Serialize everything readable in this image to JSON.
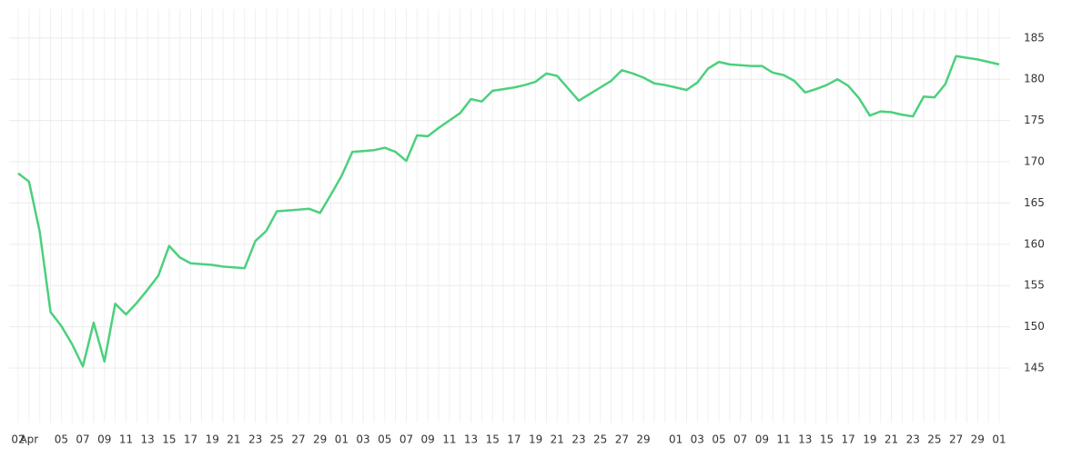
{
  "chart_data": {
    "type": "line",
    "categories": [
      "02",
      "Apr",
      null,
      null,
      "05",
      null,
      "07",
      null,
      "09",
      null,
      "11",
      null,
      "13",
      null,
      "15",
      null,
      "17",
      null,
      "19",
      null,
      "21",
      null,
      "23",
      null,
      "25",
      null,
      "27",
      null,
      "29",
      null,
      "01",
      null,
      "03",
      null,
      "05",
      null,
      "07",
      null,
      "09",
      null,
      "11",
      null,
      "13",
      null,
      "15",
      null,
      "17",
      null,
      "19",
      null,
      "21",
      null,
      "23",
      null,
      "25",
      null,
      "27",
      null,
      "29",
      null,
      null,
      "01",
      null,
      "03",
      null,
      "05",
      null,
      "07",
      null,
      "09",
      null,
      "11",
      null,
      "13",
      null,
      "15",
      null,
      "17",
      null,
      "19",
      null,
      "21",
      null,
      "23",
      null,
      "25",
      null,
      "27",
      null,
      "29",
      null,
      "01"
    ],
    "series": [
      {
        "color": "#4cd07d",
        "values": [
          168.6,
          167.6,
          161.5,
          151.8,
          150.1,
          147.9,
          145.2,
          150.5,
          145.8,
          152.8,
          151.5,
          152.9,
          154.5,
          156.2,
          159.8,
          158.4,
          157.7,
          157.6,
          157.5,
          157.3,
          157.2,
          157.1,
          160.4,
          161.6,
          164.0,
          164.1,
          164.2,
          164.3,
          163.8,
          166.0,
          168.3,
          171.2,
          171.3,
          171.4,
          171.7,
          171.2,
          170.1,
          173.2,
          173.1,
          174.1,
          175.0,
          175.9,
          177.6,
          177.3,
          178.6,
          178.8,
          179.0,
          179.3,
          179.7,
          180.7,
          180.4,
          178.9,
          177.4,
          178.2,
          179.0,
          179.8,
          181.1,
          180.7,
          180.2,
          179.5,
          179.3,
          179.0,
          178.7,
          179.6,
          181.3,
          182.1,
          181.8,
          181.7,
          181.6,
          181.6,
          180.8,
          180.5,
          179.8,
          178.4,
          178.8,
          179.3,
          180.0,
          179.2,
          177.7,
          175.6,
          176.1,
          176.0,
          175.7,
          175.5,
          177.9,
          177.8,
          179.4,
          182.8,
          182.6,
          182.4,
          182.1,
          181.8
        ]
      }
    ],
    "ylim": [
      138.4,
      188.5
    ],
    "yticks": [
      145,
      150,
      155,
      160,
      165,
      170,
      175,
      180,
      185
    ],
    "grid": true
  }
}
